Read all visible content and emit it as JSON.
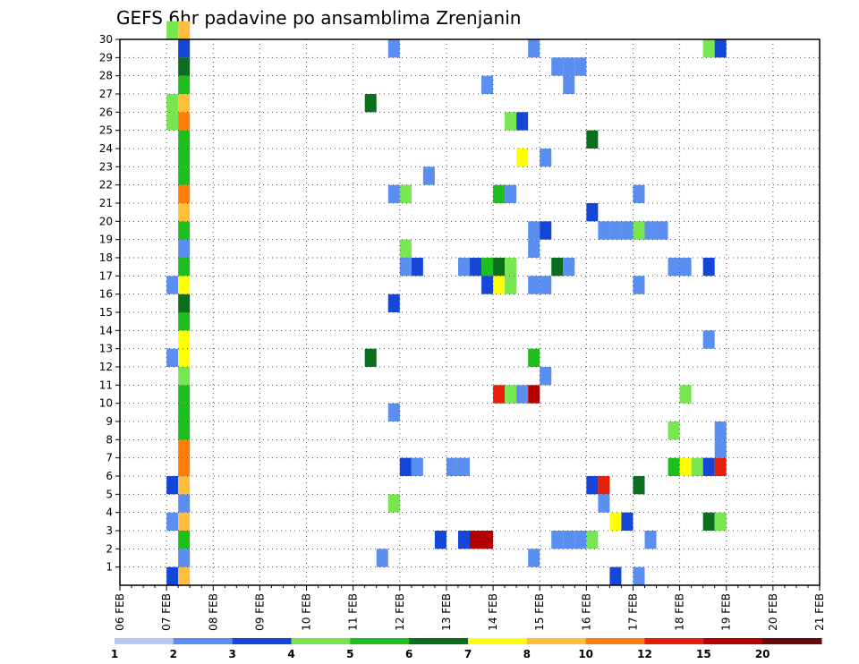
{
  "chart_data": {
    "type": "heatmap",
    "title": "GEFS 6hr padavine po ansamblima Zrenjanin",
    "xlabel": "",
    "ylabel": "",
    "y_ticks": [
      "1",
      "2",
      "3",
      "4",
      "5",
      "6",
      "7",
      "8",
      "9",
      "10",
      "11",
      "12",
      "13",
      "14",
      "15",
      "16",
      "17",
      "18",
      "19",
      "20",
      "21",
      "22",
      "23",
      "24",
      "25",
      "26",
      "27",
      "28",
      "29",
      "30"
    ],
    "x_ticks": [
      "06 FEB",
      "07 FEB",
      "08 FEB",
      "09 FEB",
      "10 FEB",
      "11 FEB",
      "12 FEB",
      "13 FEB",
      "14 FEB",
      "15 FEB",
      "16 FEB",
      "17 FEB",
      "18 FEB",
      "19 FEB",
      "20 FEB",
      "21 FEB"
    ],
    "x_range_days": [
      0,
      15
    ],
    "y_range": [
      0,
      30
    ],
    "grid": true,
    "step_hours": 6,
    "colorbar": {
      "levels": [
        "1",
        "2",
        "3",
        "4",
        "5",
        "6",
        "7",
        "8",
        "10",
        "12",
        "15",
        "20"
      ],
      "colors": [
        "#b4c8f0",
        "#5a8ef0",
        "#1446d8",
        "#78e650",
        "#1ebe1e",
        "#0a6e1e",
        "#ffff00",
        "#ffbe3c",
        "#ff7d0a",
        "#e61e0a",
        "#b40000",
        "#640a0a"
      ]
    },
    "cells": [
      {
        "t": 4,
        "m": 0,
        "c": 2
      },
      {
        "t": 5,
        "m": 0,
        "c": 7
      },
      {
        "t": 5,
        "m": 1,
        "c": 1
      },
      {
        "t": 5,
        "m": 2,
        "c": 4
      },
      {
        "t": 4,
        "m": 3,
        "c": 1
      },
      {
        "t": 5,
        "m": 3,
        "c": 7
      },
      {
        "t": 5,
        "m": 4,
        "c": 1
      },
      {
        "t": 4,
        "m": 5,
        "c": 2
      },
      {
        "t": 5,
        "m": 5,
        "c": 7
      },
      {
        "t": 5,
        "m": 6,
        "c": 8
      },
      {
        "t": 5,
        "m": 7,
        "c": 8
      },
      {
        "t": 5,
        "m": 8,
        "c": 4
      },
      {
        "t": 5,
        "m": 9,
        "c": 4
      },
      {
        "t": 5,
        "m": 10,
        "c": 4
      },
      {
        "t": 5,
        "m": 11,
        "c": 3
      },
      {
        "t": 4,
        "m": 12,
        "c": 1
      },
      {
        "t": 5,
        "m": 12,
        "c": 6
      },
      {
        "t": 5,
        "m": 13,
        "c": 6
      },
      {
        "t": 5,
        "m": 14,
        "c": 4
      },
      {
        "t": 5,
        "m": 15,
        "c": 5
      },
      {
        "t": 4,
        "m": 16,
        "c": 1
      },
      {
        "t": 5,
        "m": 16,
        "c": 6
      },
      {
        "t": 5,
        "m": 17,
        "c": 4
      },
      {
        "t": 5,
        "m": 18,
        "c": 1
      },
      {
        "t": 5,
        "m": 19,
        "c": 4
      },
      {
        "t": 5,
        "m": 20,
        "c": 7
      },
      {
        "t": 5,
        "m": 21,
        "c": 8
      },
      {
        "t": 5,
        "m": 22,
        "c": 4
      },
      {
        "t": 5,
        "m": 23,
        "c": 4
      },
      {
        "t": 5,
        "m": 24,
        "c": 4
      },
      {
        "t": 4,
        "m": 25,
        "c": 3
      },
      {
        "t": 5,
        "m": 25,
        "c": 8
      },
      {
        "t": 4,
        "m": 26,
        "c": 3
      },
      {
        "t": 5,
        "m": 26,
        "c": 7
      },
      {
        "t": 5,
        "m": 27,
        "c": 4
      },
      {
        "t": 5,
        "m": 28,
        "c": 5
      },
      {
        "t": 5,
        "m": 29,
        "c": 2
      },
      {
        "t": 4,
        "m": 30,
        "c": 3
      },
      {
        "t": 5,
        "m": 30,
        "c": 7
      },
      {
        "t": 22,
        "m": 1,
        "c": 1
      },
      {
        "t": 23,
        "m": 4,
        "c": 3
      },
      {
        "t": 23,
        "m": 9,
        "c": 1
      },
      {
        "t": 21,
        "m": 12,
        "c": 5
      },
      {
        "t": 23,
        "m": 15,
        "c": 2
      },
      {
        "t": 21,
        "m": 26,
        "c": 5
      },
      {
        "t": 23,
        "m": 21,
        "c": 1
      },
      {
        "t": 24,
        "m": 21,
        "c": 3
      },
      {
        "t": 23,
        "m": 29,
        "c": 1
      },
      {
        "t": 24,
        "m": 6,
        "c": 2
      },
      {
        "t": 25,
        "m": 6,
        "c": 1
      },
      {
        "t": 24,
        "m": 17,
        "c": 1
      },
      {
        "t": 25,
        "m": 17,
        "c": 2
      },
      {
        "t": 24,
        "m": 18,
        "c": 3
      },
      {
        "t": 26,
        "m": 22,
        "c": 1
      },
      {
        "t": 27,
        "m": 2,
        "c": 2
      },
      {
        "t": 28,
        "m": 6,
        "c": 1
      },
      {
        "t": 29,
        "m": 6,
        "c": 1
      },
      {
        "t": 29,
        "m": 2,
        "c": 2
      },
      {
        "t": 30,
        "m": 2,
        "c": 10
      },
      {
        "t": 31,
        "m": 2,
        "c": 10
      },
      {
        "t": 29,
        "m": 17,
        "c": 1
      },
      {
        "t": 30,
        "m": 17,
        "c": 2
      },
      {
        "t": 31,
        "m": 17,
        "c": 4
      },
      {
        "t": 32,
        "m": 17,
        "c": 5
      },
      {
        "t": 33,
        "m": 17,
        "c": 3
      },
      {
        "t": 31,
        "m": 16,
        "c": 2
      },
      {
        "t": 32,
        "m": 16,
        "c": 6
      },
      {
        "t": 33,
        "m": 16,
        "c": 3
      },
      {
        "t": 32,
        "m": 10,
        "c": 9
      },
      {
        "t": 33,
        "m": 10,
        "c": 3
      },
      {
        "t": 34,
        "m": 10,
        "c": 1
      },
      {
        "t": 35,
        "m": 10,
        "c": 10
      },
      {
        "t": 32,
        "m": 21,
        "c": 4
      },
      {
        "t": 33,
        "m": 21,
        "c": 1
      },
      {
        "t": 34,
        "m": 23,
        "c": 6
      },
      {
        "t": 31,
        "m": 27,
        "c": 1
      },
      {
        "t": 33,
        "m": 25,
        "c": 3
      },
      {
        "t": 34,
        "m": 25,
        "c": 2
      },
      {
        "t": 35,
        "m": 1,
        "c": 1
      },
      {
        "t": 35,
        "m": 12,
        "c": 4
      },
      {
        "t": 35,
        "m": 16,
        "c": 1
      },
      {
        "t": 36,
        "m": 16,
        "c": 1
      },
      {
        "t": 35,
        "m": 18,
        "c": 1
      },
      {
        "t": 35,
        "m": 19,
        "c": 1
      },
      {
        "t": 36,
        "m": 19,
        "c": 2
      },
      {
        "t": 35,
        "m": 29,
        "c": 1
      },
      {
        "t": 36,
        "m": 11,
        "c": 1
      },
      {
        "t": 36,
        "m": 23,
        "c": 1
      },
      {
        "t": 37,
        "m": 28,
        "c": 1
      },
      {
        "t": 38,
        "m": 28,
        "c": 1
      },
      {
        "t": 39,
        "m": 28,
        "c": 1
      },
      {
        "t": 38,
        "m": 27,
        "c": 1
      },
      {
        "t": 37,
        "m": 17,
        "c": 5
      },
      {
        "t": 38,
        "m": 17,
        "c": 1
      },
      {
        "t": 37,
        "m": 2,
        "c": 1
      },
      {
        "t": 38,
        "m": 2,
        "c": 1
      },
      {
        "t": 39,
        "m": 2,
        "c": 1
      },
      {
        "t": 40,
        "m": 2,
        "c": 3
      },
      {
        "t": 40,
        "m": 24,
        "c": 5
      },
      {
        "t": 40,
        "m": 20,
        "c": 2
      },
      {
        "t": 40,
        "m": 5,
        "c": 2
      },
      {
        "t": 41,
        "m": 5,
        "c": 9
      },
      {
        "t": 41,
        "m": 4,
        "c": 1
      },
      {
        "t": 42,
        "m": 3,
        "c": 6
      },
      {
        "t": 41,
        "m": 19,
        "c": 1
      },
      {
        "t": 42,
        "m": 19,
        "c": 1
      },
      {
        "t": 42,
        "m": 0,
        "c": 2
      },
      {
        "t": 43,
        "m": 3,
        "c": 2
      },
      {
        "t": 43,
        "m": 19,
        "c": 1
      },
      {
        "t": 44,
        "m": 19,
        "c": 3
      },
      {
        "t": 45,
        "m": 19,
        "c": 1
      },
      {
        "t": 44,
        "m": 16,
        "c": 1
      },
      {
        "t": 44,
        "m": 21,
        "c": 1
      },
      {
        "t": 44,
        "m": 0,
        "c": 1
      },
      {
        "t": 44,
        "m": 5,
        "c": 5
      },
      {
        "t": 46,
        "m": 19,
        "c": 1
      },
      {
        "t": 45,
        "m": 2,
        "c": 1
      },
      {
        "t": 47,
        "m": 17,
        "c": 1
      },
      {
        "t": 48,
        "m": 17,
        "c": 1
      },
      {
        "t": 47,
        "m": 8,
        "c": 3
      },
      {
        "t": 48,
        "m": 10,
        "c": 3
      },
      {
        "t": 47,
        "m": 6,
        "c": 4
      },
      {
        "t": 48,
        "m": 6,
        "c": 6
      },
      {
        "t": 49,
        "m": 6,
        "c": 3
      },
      {
        "t": 50,
        "m": 6,
        "c": 2
      },
      {
        "t": 51,
        "m": 6,
        "c": 9
      },
      {
        "t": 50,
        "m": 17,
        "c": 2
      },
      {
        "t": 50,
        "m": 13,
        "c": 1
      },
      {
        "t": 50,
        "m": 3,
        "c": 5
      },
      {
        "t": 51,
        "m": 3,
        "c": 3
      },
      {
        "t": 50,
        "m": 29,
        "c": 3
      },
      {
        "t": 51,
        "m": 29,
        "c": 2
      },
      {
        "t": 51,
        "m": 7,
        "c": 1
      },
      {
        "t": 51,
        "m": 8,
        "c": 1
      }
    ]
  }
}
